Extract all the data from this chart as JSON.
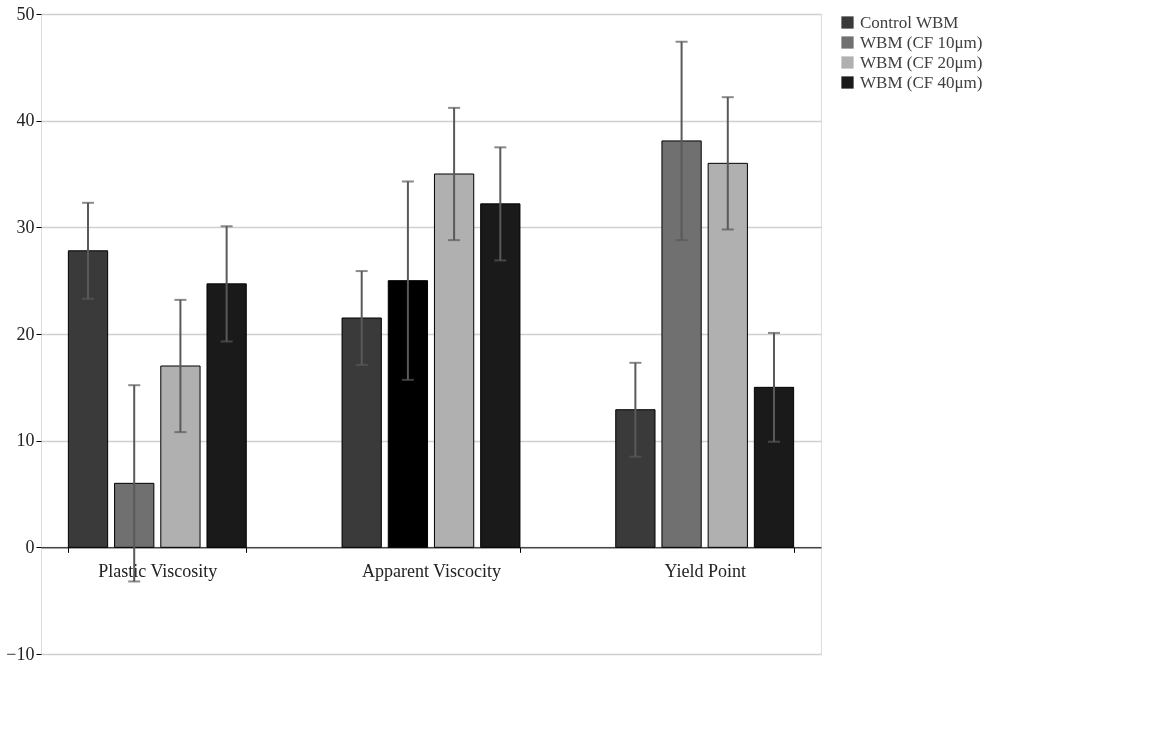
{
  "chart_data": {
    "type": "bar",
    "categories": [
      "Plastic Viscosity",
      "Apparent Viscocity",
      "Yield Point"
    ],
    "series": [
      {
        "name": "Control WBM",
        "color": "#3a3a3a",
        "values": [
          27.8,
          21.5,
          12.9
        ],
        "errors": [
          4.5,
          4.4,
          4.4
        ]
      },
      {
        "name": "WBM (CF 10μm)",
        "color": "#707070",
        "colors": [
          "#707070",
          "#000000",
          "#707070"
        ],
        "values": [
          6,
          25,
          38.1
        ],
        "errors": [
          9.2,
          9.3,
          9.3
        ]
      },
      {
        "name": "WBM (CF 20μm)",
        "color": "#b0b0b0",
        "values": [
          17,
          35,
          36
        ],
        "errors": [
          6.2,
          6.2,
          6.2
        ]
      },
      {
        "name": "WBM (CF 40μm)",
        "color": "#1a1a1a",
        "values": [
          24.7,
          32.2,
          15
        ],
        "errors": [
          5.4,
          5.3,
          5.1
        ]
      }
    ],
    "ylim": [
      -10,
      50
    ],
    "yticks": [
      -10,
      0,
      10,
      20,
      30,
      40,
      50
    ],
    "grid": "y",
    "legend": "right"
  }
}
